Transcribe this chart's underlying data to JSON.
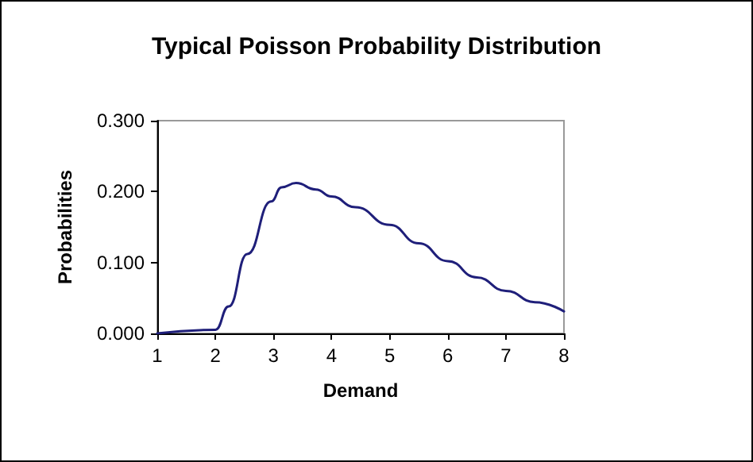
{
  "chart_data": {
    "type": "line",
    "title": "Typical Poisson Probability Distribution",
    "xlabel": "Demand",
    "ylabel": "Probabilities",
    "series": [
      {
        "color": "#1f1f7a",
        "x": [
          1,
          1.68,
          2.0,
          2.23,
          2.55,
          2.96,
          3.14,
          3.39,
          3.73,
          4.0,
          4.41,
          5.0,
          5.5,
          6.0,
          6.5,
          7.0,
          7.5,
          8.0
        ],
        "values": [
          0,
          null,
          0.005,
          0.038,
          0.112,
          0.186,
          0.206,
          0.212,
          0.203,
          0.193,
          0.178,
          0.153,
          0.127,
          0.102,
          0.079,
          0.06,
          0.044,
          0.031
        ]
      }
    ],
    "xlim": [
      1,
      8
    ],
    "xticks": [
      1,
      2,
      3,
      4,
      5,
      6,
      7,
      8
    ],
    "ylim": [
      0,
      0.3
    ],
    "yticks": [
      {
        "value": 0,
        "label": "0.000"
      },
      {
        "value": 0.1,
        "label": "0.100"
      },
      {
        "value": 0.2,
        "label": "0.200"
      },
      {
        "value": 0.3,
        "label": "0.300"
      }
    ],
    "grid": false,
    "marker": "none",
    "line_style": "solid"
  }
}
